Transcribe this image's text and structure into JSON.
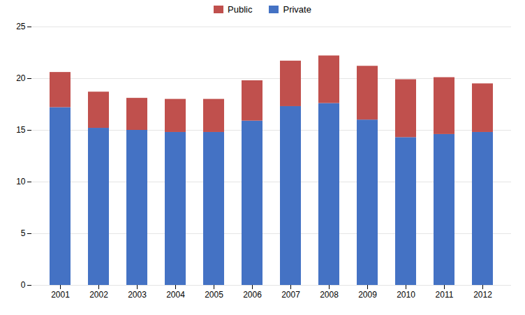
{
  "chart_data": {
    "type": "bar",
    "stacked": true,
    "categories": [
      "2001",
      "2002",
      "2003",
      "2004",
      "2005",
      "2006",
      "2007",
      "2008",
      "2009",
      "2010",
      "2011",
      "2012"
    ],
    "series": [
      {
        "name": "Private",
        "color": "#4472C4",
        "values": [
          17.2,
          15.2,
          15.0,
          14.8,
          14.8,
          15.9,
          17.3,
          17.6,
          16.0,
          14.3,
          14.6,
          14.8
        ]
      },
      {
        "name": "Public",
        "color": "#C0504D",
        "values": [
          3.4,
          3.5,
          3.1,
          3.2,
          3.2,
          3.9,
          4.4,
          4.6,
          5.2,
          5.6,
          5.5,
          4.7
        ]
      }
    ],
    "ylim": [
      0,
      25
    ],
    "yticks": [
      0,
      5,
      10,
      15,
      20,
      25
    ],
    "grid": true,
    "legend": "top"
  }
}
